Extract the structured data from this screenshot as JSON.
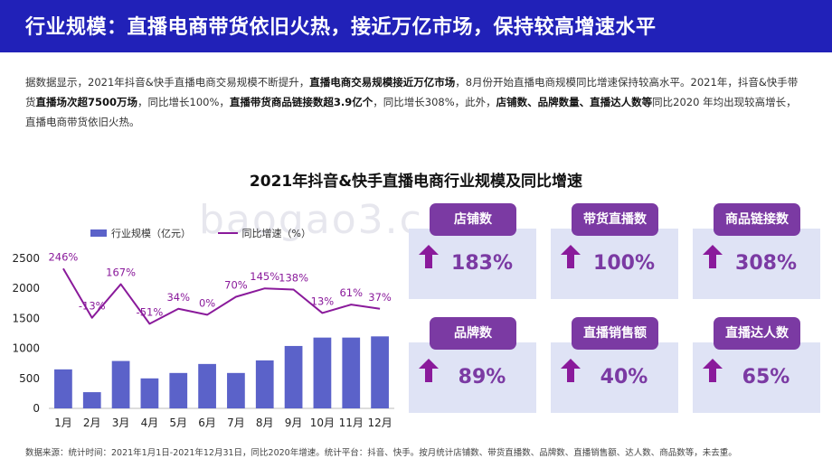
{
  "header": {
    "title": "行业规模：直播电商带货依旧火热，接近万亿市场，保持较高增速水平"
  },
  "intro": {
    "p1": "据数据显示，2021年抖音&快手直播电商交易规模不断提升，",
    "b1": "直播电商交易规模接近万亿市场",
    "p2": "，8月份开始直播电商规模同比增速保持较高水平。2021年，抖音&快手带货",
    "b2": "直播场次超7500万场",
    "p3": "，同比增长100%，",
    "b3": "直播带货商品链接数超3.9亿个",
    "p4": "，同比增长308%，此外，",
    "b4": "店铺数、品牌数量、直播达人数等",
    "p5": "同比2020 年均出现较高增长，直播电商带货依旧火热。"
  },
  "watermark": "baogao3.c",
  "chart": {
    "title": "2021年抖音&快手直播电商行业规模及同比增速"
  },
  "chart_data": {
    "type": "bar",
    "title": "2021年抖音&快手直播电商行业规模及同比增速",
    "categories": [
      "1月",
      "2月",
      "3月",
      "4月",
      "5月",
      "6月",
      "7月",
      "8月",
      "9月",
      "10月",
      "11月",
      "12月"
    ],
    "series": [
      {
        "name": "行业规模（亿元）",
        "type": "bar",
        "values": [
          650,
          270,
          790,
          500,
          590,
          740,
          590,
          800,
          1040,
          1180,
          1180,
          1200
        ]
      },
      {
        "name": "同比增速（%）",
        "type": "line",
        "values": [
          246,
          -13,
          167,
          -51,
          34,
          0,
          70,
          145,
          138,
          13,
          61,
          37
        ],
        "labels": [
          "246%",
          "-13%",
          "167%",
          "-51%",
          "34%",
          "0%",
          "70%",
          "145%",
          "138%",
          "13%",
          "61%",
          "37%"
        ]
      }
    ],
    "yticks": [
      "2500",
      "2000",
      "1500",
      "1000",
      "500",
      "0"
    ],
    "ylim": [
      0,
      2500
    ],
    "line_display_positions": [
      2330,
      1510,
      2070,
      1410,
      1660,
      1560,
      1860,
      2000,
      1980,
      1590,
      1730,
      1660
    ],
    "legend_placement": "top-left",
    "colors": {
      "bar": "#5b62c9",
      "line": "#8a1a9b"
    }
  },
  "cards": [
    {
      "label": "店铺数",
      "value": "183%"
    },
    {
      "label": "带货直播数",
      "value": "100%"
    },
    {
      "label": "商品链接数",
      "value": "308%"
    },
    {
      "label": "品牌数",
      "value": "89%"
    },
    {
      "label": "直播销售额",
      "value": "40%"
    },
    {
      "label": "直播达人数",
      "value": "65%"
    }
  ],
  "colors": {
    "header_bg": "#2121b8",
    "card_bg": "#dfe3f5",
    "card_label_bg": "#7b3aa3",
    "card_value": "#7b3aa3",
    "arrow": "#8a1a9b"
  },
  "icons": {
    "card_arrow": "up-arrow-icon"
  },
  "footer": "数据来源：统计时间：2021年1月1日-2021年12月31日，同比2020年增速。统计平台：抖音、快手。按月统计店铺数、带货直播数、品牌数、直播销售额、达人数、商品数等，未去重。"
}
